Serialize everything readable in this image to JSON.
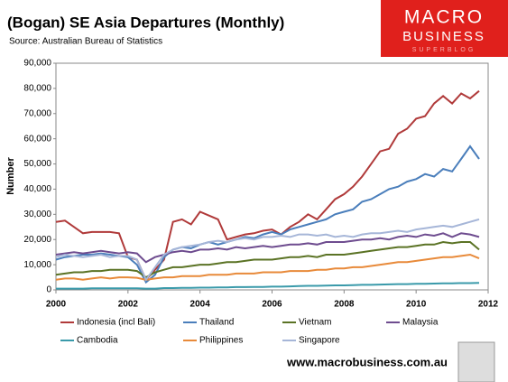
{
  "chart_data": {
    "type": "line",
    "title": "(Bogan) SE Asia Departures (Monthly)",
    "subtitle": "Source: Australian Bureau of Statistics",
    "y_label": "Number",
    "x": [
      2000,
      2000.25,
      2000.5,
      2000.75,
      2001,
      2001.25,
      2001.5,
      2001.75,
      2002,
      2002.25,
      2002.5,
      2002.75,
      2003,
      2003.25,
      2003.5,
      2003.75,
      2004,
      2004.25,
      2004.5,
      2004.75,
      2005,
      2005.25,
      2005.5,
      2005.75,
      2006,
      2006.25,
      2006.5,
      2006.75,
      2007,
      2007.25,
      2007.5,
      2007.75,
      2008,
      2008.25,
      2008.5,
      2008.75,
      2009,
      2009.25,
      2009.5,
      2009.75,
      2010,
      2010.25,
      2010.5,
      2010.75,
      2011,
      2011.25,
      2011.5,
      2011.75
    ],
    "series": [
      {
        "name": "Indonesia (incl Bali)",
        "color": "#b03a3a",
        "values": [
          27000,
          27500,
          25000,
          22500,
          23000,
          23000,
          23000,
          22500,
          13000,
          12000,
          4000,
          8000,
          12000,
          27000,
          28000,
          26000,
          31000,
          29500,
          28000,
          20000,
          21000,
          22000,
          22500,
          23500,
          24000,
          22000,
          25000,
          27000,
          30000,
          28000,
          32000,
          36000,
          38000,
          41000,
          45000,
          50000,
          55000,
          56000,
          62000,
          64000,
          68000,
          69000,
          74000,
          77000,
          74000,
          78000,
          76000,
          79000
        ]
      },
      {
        "name": "Thailand",
        "color": "#4a7ebb",
        "values": [
          12000,
          13000,
          13500,
          14000,
          14000,
          14500,
          14000,
          13500,
          13000,
          10000,
          3000,
          6000,
          13000,
          16000,
          17000,
          16500,
          18000,
          19000,
          18000,
          19000,
          20000,
          21000,
          20500,
          22000,
          23000,
          22000,
          24000,
          25000,
          26000,
          27000,
          28000,
          30000,
          31000,
          32000,
          35000,
          36000,
          38000,
          40000,
          41000,
          43000,
          44000,
          46000,
          45000,
          48000,
          47000,
          52000,
          57000,
          52000
        ]
      },
      {
        "name": "Vietnam",
        "color": "#5b7325",
        "values": [
          6000,
          6500,
          7000,
          7000,
          7500,
          7500,
          8000,
          8000,
          8000,
          7500,
          5000,
          7000,
          8000,
          9000,
          9000,
          9500,
          10000,
          10000,
          10500,
          11000,
          11000,
          11500,
          12000,
          12000,
          12000,
          12500,
          13000,
          13000,
          13500,
          13000,
          14000,
          14000,
          14000,
          14500,
          15000,
          15500,
          16000,
          16500,
          17000,
          17000,
          17500,
          18000,
          18000,
          19000,
          18500,
          19000,
          19000,
          16000
        ]
      },
      {
        "name": "Malaysia",
        "color": "#6e4c8f",
        "values": [
          14000,
          14500,
          15000,
          14500,
          15000,
          15500,
          15000,
          14500,
          15000,
          14500,
          11000,
          13000,
          14000,
          15000,
          15500,
          15000,
          16000,
          16000,
          16500,
          16000,
          17000,
          16500,
          17000,
          17500,
          17000,
          17500,
          18000,
          18000,
          18500,
          18000,
          19000,
          19000,
          19000,
          19500,
          20000,
          20000,
          20500,
          20000,
          21000,
          21500,
          21000,
          22000,
          21500,
          22500,
          21000,
          22500,
          22000,
          21000
        ]
      },
      {
        "name": "Cambodia",
        "color": "#3a9aaa",
        "values": [
          500,
          500,
          500,
          500,
          600,
          600,
          600,
          600,
          600,
          600,
          500,
          500,
          700,
          700,
          800,
          800,
          900,
          900,
          1000,
          1000,
          1100,
          1100,
          1200,
          1200,
          1300,
          1300,
          1400,
          1500,
          1600,
          1600,
          1700,
          1800,
          1800,
          1900,
          2000,
          2000,
          2100,
          2200,
          2300,
          2300,
          2400,
          2400,
          2500,
          2600,
          2600,
          2700,
          2700,
          2800
        ]
      },
      {
        "name": "Philippines",
        "color": "#e88a3a",
        "values": [
          4000,
          4500,
          4500,
          4000,
          4500,
          5000,
          4500,
          5000,
          5000,
          4800,
          4000,
          4500,
          5000,
          5000,
          5500,
          5500,
          5500,
          6000,
          6000,
          6000,
          6500,
          6500,
          6500,
          7000,
          7000,
          7000,
          7500,
          7500,
          7500,
          8000,
          8000,
          8500,
          8500,
          9000,
          9000,
          9500,
          10000,
          10500,
          11000,
          11000,
          11500,
          12000,
          12500,
          13000,
          13000,
          13500,
          14000,
          12500
        ]
      },
      {
        "name": "Singapore",
        "color": "#a6b6d8",
        "values": [
          13000,
          14000,
          13500,
          13000,
          13500,
          14000,
          13000,
          13500,
          13500,
          12000,
          4000,
          9000,
          14000,
          16000,
          17000,
          17500,
          18000,
          19000,
          19500,
          19000,
          20000,
          20500,
          20000,
          21000,
          21000,
          21500,
          21000,
          22000,
          22000,
          21500,
          22000,
          21000,
          21500,
          21000,
          22000,
          22500,
          22500,
          23000,
          23500,
          23000,
          24000,
          24500,
          25000,
          25500,
          25000,
          26000,
          27000,
          28000
        ]
      }
    ],
    "xlim": [
      2000,
      2012
    ],
    "xticks": [
      2000,
      2002,
      2004,
      2006,
      2008,
      2010,
      2012
    ],
    "ylim": [
      0,
      90000
    ],
    "yticks": [
      0,
      {
        "value": 10000,
        "label": "10,000"
      },
      {
        "value": 20000,
        "label": "20,000"
      },
      {
        "value": 30000,
        "label": "30,000"
      },
      {
        "value": 40000,
        "label": "40,000"
      },
      {
        "value": 50000,
        "label": "50,000"
      },
      {
        "value": 60000,
        "label": "60,000"
      },
      {
        "value": 70000,
        "label": "70,000"
      },
      {
        "value": 80000,
        "label": "80,000"
      },
      {
        "value": 90000,
        "label": "90,000"
      }
    ],
    "grid": false
  },
  "logo": {
    "line1": "MACRO",
    "line2": "BUSINESS",
    "line3": "SUPERBLOG"
  },
  "footer_url": "www.macrobusiness.com.au"
}
